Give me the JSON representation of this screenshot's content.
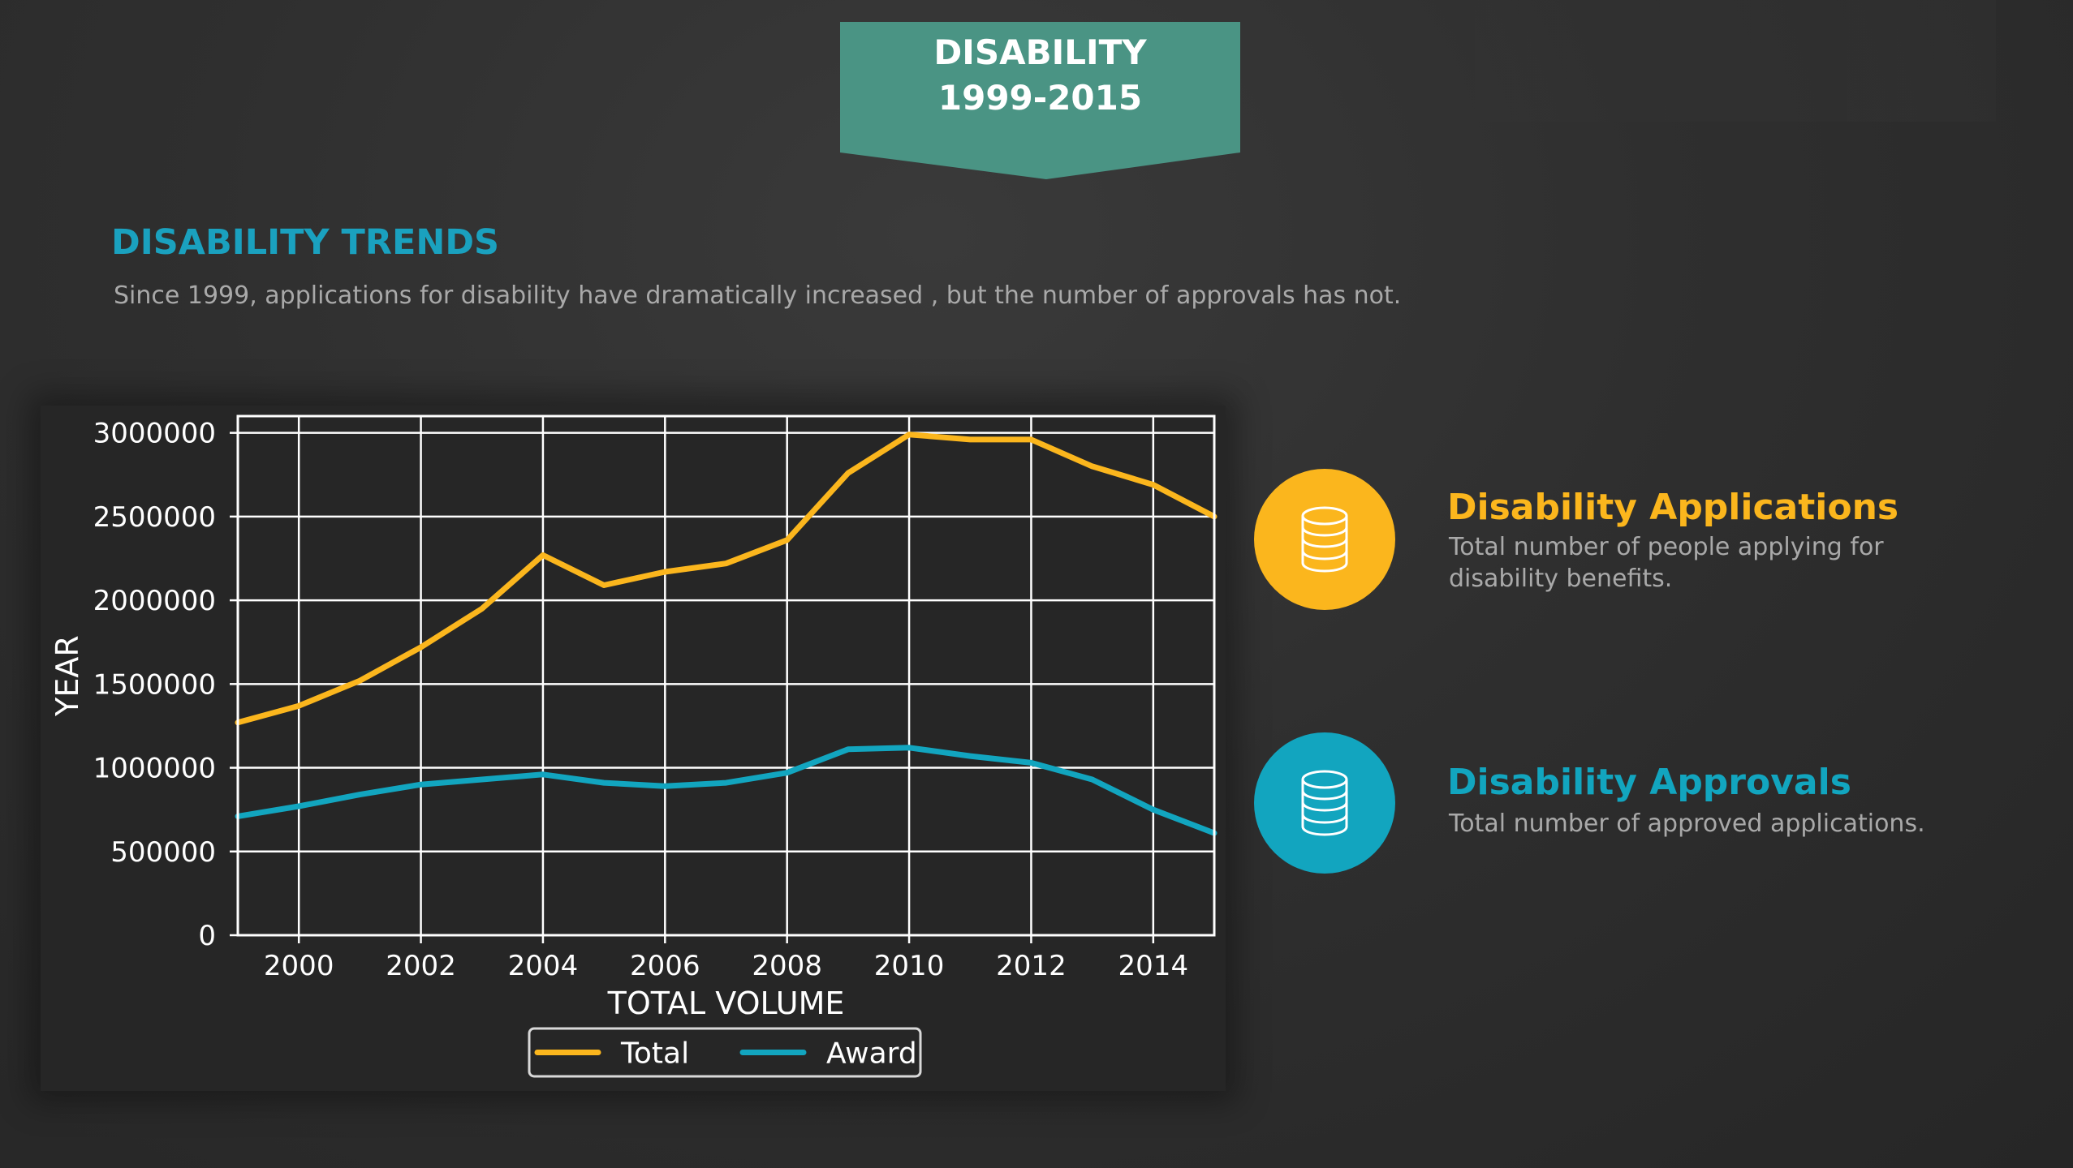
{
  "banner": {
    "line1": "DISABILITY",
    "line2": "1999-2015",
    "color": "#4a9484"
  },
  "section": {
    "title": "DISABILITY TRENDS",
    "subtitle": "Since 1999, applications for disability have dramatically  increased , but the number of approvals has not."
  },
  "info": [
    {
      "title": "Disability Applications",
      "description": "Total number of people applying for disability benefits.",
      "color": "#fbb61d",
      "icon": "database-icon"
    },
    {
      "title": "Disability Approvals",
      "description": "Total number of approved applications.",
      "color": "#12a5bf",
      "icon": "database-icon"
    }
  ],
  "chart_data": {
    "type": "line",
    "xlabel": "TOTAL VOLUME",
    "ylabel": "YEAR",
    "xlim": [
      1999,
      2015
    ],
    "ylim": [
      0,
      3100000
    ],
    "x_ticks": [
      2000,
      2002,
      2004,
      2006,
      2008,
      2010,
      2012,
      2014
    ],
    "y_ticks": [
      0,
      500000,
      1000000,
      1500000,
      2000000,
      2500000,
      3000000
    ],
    "grid": true,
    "legend_position": "bottom-center",
    "x": [
      1999,
      2000,
      2001,
      2002,
      2003,
      2004,
      2005,
      2006,
      2007,
      2008,
      2009,
      2010,
      2011,
      2012,
      2013,
      2014,
      2015
    ],
    "series": [
      {
        "name": "Total",
        "color": "#fbb61d",
        "values": [
          1270000,
          1370000,
          1520000,
          1720000,
          1950000,
          2270000,
          2090000,
          2170000,
          2220000,
          2360000,
          2760000,
          2990000,
          2960000,
          2960000,
          2800000,
          2690000,
          2500000
        ]
      },
      {
        "name": "Award",
        "color": "#12a5bf",
        "values": [
          710000,
          770000,
          840000,
          900000,
          930000,
          960000,
          910000,
          890000,
          910000,
          970000,
          1110000,
          1120000,
          1070000,
          1030000,
          930000,
          750000,
          610000
        ]
      }
    ]
  }
}
